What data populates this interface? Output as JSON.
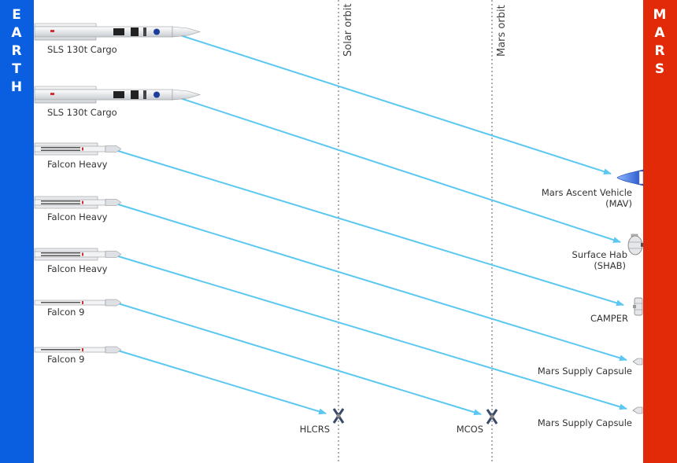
{
  "earth": {
    "letters": [
      "E",
      "A",
      "R",
      "T",
      "H"
    ],
    "color": "#0a5fe0"
  },
  "mars": {
    "letters": [
      "M",
      "A",
      "R",
      "S"
    ],
    "color": "#e22a08"
  },
  "arrow_color": "#5cc8f2",
  "orbits": [
    {
      "label": "Solar orbit"
    },
    {
      "label": "Mars orbit"
    }
  ],
  "launches": [
    {
      "vehicle": "SLS 130t Cargo",
      "payload": "Mars Ascent Vehicle",
      "payload_sub": "(MAV)"
    },
    {
      "vehicle": "SLS 130t Cargo",
      "payload": "Surface Hab",
      "payload_sub": "(SHAB)"
    },
    {
      "vehicle": "Falcon Heavy",
      "payload": "CAMPER",
      "payload_sub": ""
    },
    {
      "vehicle": "Falcon Heavy",
      "payload": "Mars Supply Capsule",
      "payload_sub": ""
    },
    {
      "vehicle": "Falcon Heavy",
      "payload": "Mars Supply Capsule",
      "payload_sub": ""
    },
    {
      "vehicle": "Falcon 9",
      "payload": "MCOS",
      "payload_sub": ""
    },
    {
      "vehicle": "Falcon 9",
      "payload": "HLCRS",
      "payload_sub": ""
    }
  ]
}
